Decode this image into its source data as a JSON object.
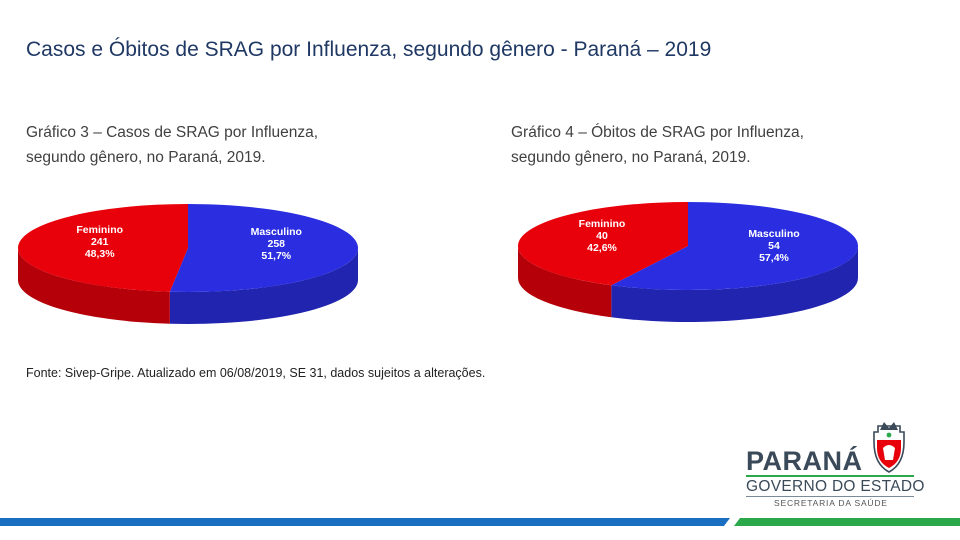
{
  "page": {
    "title": "Casos e Óbitos de SRAG por Influenza, segundo gênero - Paraná – 2019",
    "source": "Fonte: Sivep-Gripe. Atualizado em 06/08/2019, SE 31, dados sujeitos a alterações.",
    "logo": {
      "brand": "PARANÁ",
      "government": "GOVERNO DO ESTADO",
      "secretariat": "SECRETARIA DA SAÚDE"
    },
    "colors": {
      "title": "#1f3864",
      "feminino": "#e8000b",
      "masculino": "#2a2ee0",
      "bar_blue": "#1b6fc0",
      "bar_green": "#2aa84a"
    }
  },
  "chart_data": [
    {
      "type": "pie",
      "caption_line1": "Gráfico 3 – Casos de SRAG por Influenza,",
      "caption_line2": "segundo gênero, no Paraná, 2019.",
      "slices": [
        {
          "label": "Feminino",
          "value": 241,
          "percent": "48,3%",
          "color": "#e8000b"
        },
        {
          "label": "Masculino",
          "value": 258,
          "percent": "51,7%",
          "color": "#2a2ee0"
        }
      ]
    },
    {
      "type": "pie",
      "caption_line1": "Gráfico 4 – Óbitos de SRAG por Influenza,",
      "caption_line2": "segundo gênero, no Paraná, 2019.",
      "slices": [
        {
          "label": "Feminino",
          "value": 40,
          "percent": "42,6%",
          "color": "#e8000b"
        },
        {
          "label": "Masculino",
          "value": 54,
          "percent": "57,4%",
          "color": "#2a2ee0"
        }
      ]
    }
  ]
}
